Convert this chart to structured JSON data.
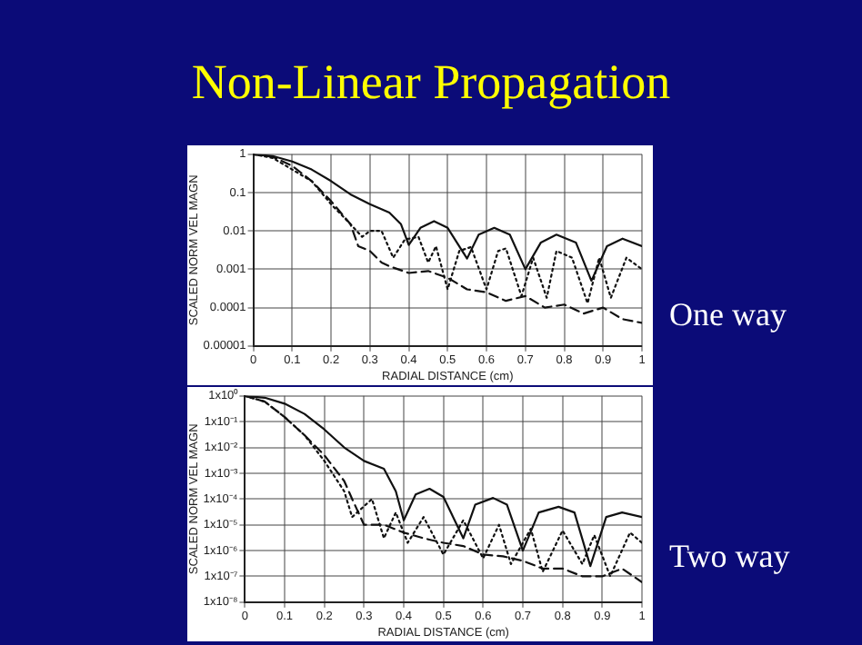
{
  "chart_data": [
    {
      "type": "line",
      "title": "Non-Linear Propagation",
      "xlabel": "RADIAL DISTANCE (cm)",
      "ylabel": "SCALED NORM VEL MAGN",
      "annotations": [
        "One way"
      ],
      "log": "y",
      "grid": true,
      "legend": false,
      "marker": "none",
      "xlim": [
        0,
        1
      ],
      "xticks": [
        0,
        0.1,
        0.2,
        0.3,
        0.4,
        0.5,
        0.6,
        0.7,
        0.8,
        0.9,
        1
      ],
      "ylim": [
        1e-05,
        1
      ],
      "yticks": [
        {
          "value": 1e-05,
          "label": "0.00001"
        },
        {
          "value": 0.0001,
          "label": "0.0001"
        },
        {
          "value": 0.001,
          "label": "0.001"
        },
        {
          "value": 0.01,
          "label": "0.01"
        },
        {
          "value": 0.1,
          "label": "0.1"
        },
        {
          "value": 1,
          "label": "1"
        }
      ],
      "series": [
        {
          "color": "#111111",
          "line_style": "solid",
          "x": [
            0,
            0.05,
            0.1,
            0.15,
            0.2,
            0.25,
            0.3,
            0.35,
            0.38,
            0.4,
            0.43,
            0.465,
            0.5,
            0.55,
            0.58,
            0.62,
            0.66,
            0.7,
            0.74,
            0.78,
            0.83,
            0.87,
            0.91,
            0.95,
            1
          ],
          "values": [
            1,
            0.9,
            0.65,
            0.4,
            0.2,
            0.09,
            0.05,
            0.03,
            0.015,
            0.0043,
            0.012,
            0.018,
            0.012,
            0.0019,
            0.008,
            0.012,
            0.008,
            0.001,
            0.005,
            0.008,
            0.005,
            0.0005,
            0.004,
            0.0063,
            0.004
          ]
        },
        {
          "color": "#111111",
          "line_style": "dotted",
          "x": [
            0,
            0.05,
            0.1,
            0.15,
            0.2,
            0.25,
            0.28,
            0.3,
            0.33,
            0.36,
            0.39,
            0.425,
            0.45,
            0.47,
            0.5,
            0.53,
            0.56,
            0.6,
            0.63,
            0.65,
            0.69,
            0.72,
            0.755,
            0.78,
            0.82,
            0.86,
            0.89,
            0.92,
            0.96,
            1
          ],
          "values": [
            1,
            0.8,
            0.4,
            0.2,
            0.05,
            0.015,
            0.007,
            0.01,
            0.01,
            0.002,
            0.006,
            0.007,
            0.0015,
            0.004,
            0.0003,
            0.003,
            0.0038,
            0.0003,
            0.003,
            0.0035,
            0.0002,
            0.002,
            0.00018,
            0.003,
            0.002,
            0.00013,
            0.002,
            0.00018,
            0.002,
            0.001
          ]
        },
        {
          "color": "#111111",
          "line_style": "dashed",
          "x": [
            0,
            0.05,
            0.1,
            0.15,
            0.2,
            0.25,
            0.27,
            0.3,
            0.33,
            0.35,
            0.4,
            0.45,
            0.5,
            0.55,
            0.6,
            0.65,
            0.7,
            0.75,
            0.8,
            0.85,
            0.9,
            0.95,
            1
          ],
          "values": [
            1,
            0.85,
            0.5,
            0.2,
            0.06,
            0.015,
            0.004,
            0.003,
            0.0015,
            0.0012,
            0.0008,
            0.0009,
            0.0006,
            0.0003,
            0.00025,
            0.00015,
            0.0002,
            0.0001,
            0.00012,
            7e-05,
            0.0001,
            5e-05,
            4e-05
          ]
        }
      ]
    },
    {
      "type": "line",
      "xlabel": "RADIAL DISTANCE (cm)",
      "ylabel": "SCALED NORM VEL MAGN",
      "annotations": [
        "Two way"
      ],
      "log": "y",
      "grid": true,
      "legend": false,
      "marker": "none",
      "xlim": [
        0,
        1
      ],
      "xticks": [
        0,
        0.1,
        0.2,
        0.3,
        0.4,
        0.5,
        0.6,
        0.7,
        0.8,
        0.9,
        1
      ],
      "ylim": [
        1e-08,
        1
      ],
      "yticks": [
        {
          "value": 1e-08,
          "label": "1x10⁻⁸"
        },
        {
          "value": 1e-07,
          "label": "1x10⁻⁷"
        },
        {
          "value": 1e-06,
          "label": "1x10⁻⁶"
        },
        {
          "value": 1e-05,
          "label": "1x10⁻⁵"
        },
        {
          "value": 0.0001,
          "label": "1x10⁻⁴"
        },
        {
          "value": 0.001,
          "label": "1x10⁻³"
        },
        {
          "value": 0.01,
          "label": "1x10⁻²"
        },
        {
          "value": 0.1,
          "label": "1x10⁻¹"
        },
        {
          "value": 1,
          "label": "1x10⁰"
        }
      ],
      "series": [
        {
          "color": "#111111",
          "line_style": "solid",
          "x": [
            0,
            0.05,
            0.1,
            0.15,
            0.2,
            0.25,
            0.3,
            0.35,
            0.38,
            0.4,
            0.43,
            0.465,
            0.5,
            0.55,
            0.58,
            0.625,
            0.66,
            0.7,
            0.74,
            0.79,
            0.83,
            0.87,
            0.91,
            0.95,
            1
          ],
          "values": [
            1,
            0.85,
            0.5,
            0.2,
            0.05,
            0.01,
            0.003,
            0.0015,
            0.0002,
            1.5e-05,
            0.00015,
            0.00025,
            0.00012,
            3e-06,
            6e-05,
            0.00011,
            6e-05,
            1e-06,
            3e-05,
            5e-05,
            3e-05,
            2.5e-07,
            2e-05,
            3e-05,
            2e-05
          ]
        },
        {
          "color": "#111111",
          "line_style": "dotted",
          "x": [
            0,
            0.05,
            0.1,
            0.15,
            0.2,
            0.25,
            0.27,
            0.32,
            0.35,
            0.38,
            0.41,
            0.45,
            0.5,
            0.55,
            0.6,
            0.64,
            0.67,
            0.72,
            0.75,
            0.8,
            0.85,
            0.88,
            0.92,
            0.97,
            1
          ],
          "values": [
            1,
            0.6,
            0.15,
            0.03,
            0.003,
            0.0002,
            2e-05,
            0.0001,
            3e-06,
            3e-05,
            2e-06,
            2e-05,
            7e-07,
            1.5e-05,
            5e-07,
            1e-05,
            3e-07,
            7e-06,
            1.5e-07,
            6e-06,
            3e-07,
            4e-06,
            1e-07,
            5e-06,
            2e-06
          ]
        },
        {
          "color": "#111111",
          "line_style": "dashed",
          "x": [
            0,
            0.05,
            0.1,
            0.15,
            0.2,
            0.25,
            0.27,
            0.3,
            0.35,
            0.4,
            0.45,
            0.5,
            0.55,
            0.6,
            0.65,
            0.7,
            0.75,
            0.8,
            0.85,
            0.9,
            0.95,
            1
          ],
          "values": [
            1,
            0.6,
            0.15,
            0.03,
            0.005,
            0.0005,
            0.0001,
            1e-05,
            1e-05,
            5e-06,
            3e-06,
            2e-06,
            1.5e-06,
            7e-07,
            6e-07,
            4e-07,
            2e-07,
            2e-07,
            1e-07,
            1e-07,
            2e-07,
            6e-08
          ]
        }
      ]
    }
  ]
}
